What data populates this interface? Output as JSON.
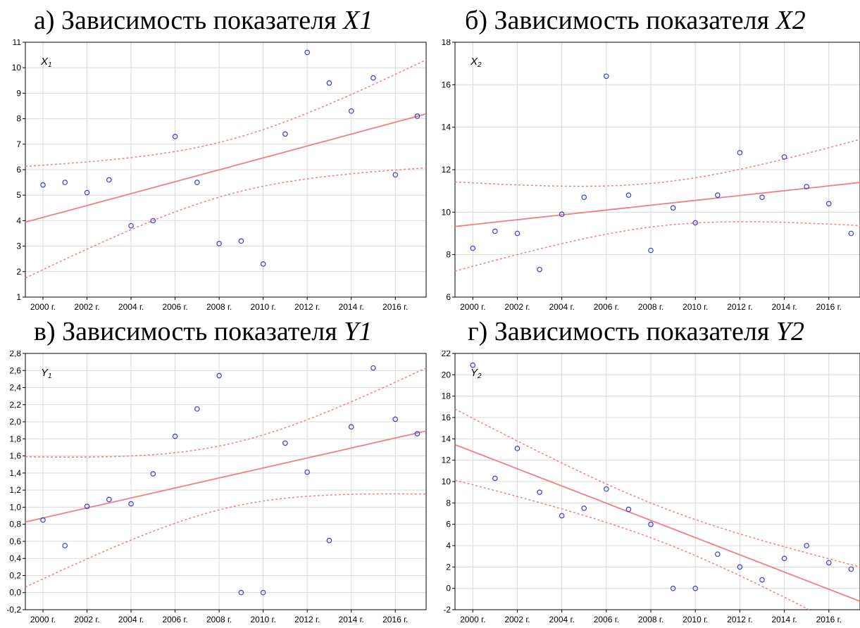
{
  "chart_data": [
    {
      "type": "scatter",
      "caption_prefix": "а) Зависимость показателя ",
      "caption_var": "X1",
      "series_label": "X",
      "series_label_sub": "1",
      "x": [
        2000,
        2001,
        2002,
        2003,
        2004,
        2005,
        2006,
        2007,
        2008,
        2009,
        2010,
        2011,
        2012,
        2013,
        2014,
        2015,
        2016,
        2017
      ],
      "y": [
        5.4,
        5.5,
        5.1,
        5.6,
        3.8,
        4.0,
        7.3,
        5.5,
        3.1,
        3.2,
        2.3,
        7.4,
        10.6,
        9.4,
        8.3,
        9.6,
        5.8,
        8.1
      ],
      "xlim": [
        1999.2,
        2017.4
      ],
      "ylim": [
        1,
        11
      ],
      "ytick_start": 1,
      "ytick_step": 1,
      "ytick_decimals": 0,
      "xtick_labels": [
        "2000 г.",
        "2002 г.",
        "2004 г.",
        "2006 г.",
        "2008 г.",
        "2010 г.",
        "2012 г.",
        "2014 г.",
        "2016 г."
      ],
      "xtick_values": [
        2000,
        2002,
        2004,
        2006,
        2008,
        2010,
        2012,
        2014,
        2016
      ],
      "grid": true,
      "point_color": "#3b3bd6",
      "fit_color": "#f08080"
    },
    {
      "type": "scatter",
      "caption_prefix": "б) Зависимость показателя ",
      "caption_var": "X2",
      "series_label": "X",
      "series_label_sub": "2",
      "x": [
        2000,
        2001,
        2002,
        2003,
        2004,
        2005,
        2006,
        2007,
        2008,
        2009,
        2010,
        2011,
        2012,
        2013,
        2014,
        2015,
        2016,
        2017
      ],
      "y": [
        8.3,
        9.1,
        9.0,
        7.3,
        9.9,
        10.7,
        16.4,
        10.8,
        8.2,
        10.2,
        9.5,
        10.8,
        12.8,
        10.7,
        12.6,
        11.2,
        10.4,
        9.0
      ],
      "xlim": [
        1999.2,
        2017.4
      ],
      "ylim": [
        6,
        18
      ],
      "ytick_start": 6,
      "ytick_step": 2,
      "ytick_decimals": 0,
      "xtick_labels": [
        "2000 г.",
        "2002 г.",
        "2004 г.",
        "2006 г.",
        "2008 г.",
        "2010 г.",
        "2012 г.",
        "2014 г.",
        "2016 г."
      ],
      "xtick_values": [
        2000,
        2002,
        2004,
        2006,
        2008,
        2010,
        2012,
        2014,
        2016
      ],
      "grid": true,
      "point_color": "#3b3bd6",
      "fit_color": "#f08080"
    },
    {
      "type": "scatter",
      "caption_prefix": "в) Зависимость показателя ",
      "caption_var": "Y1",
      "series_label": "Y",
      "series_label_sub": "1",
      "x": [
        2000,
        2001,
        2002,
        2003,
        2004,
        2005,
        2006,
        2007,
        2008,
        2009,
        2010,
        2011,
        2012,
        2013,
        2014,
        2015,
        2016,
        2017
      ],
      "y": [
        0.85,
        0.55,
        1.01,
        1.09,
        1.04,
        1.39,
        1.83,
        2.15,
        2.54,
        0.0,
        0.0,
        1.75,
        1.41,
        0.61,
        1.94,
        2.63,
        2.03,
        1.86
      ],
      "xlim": [
        1999.2,
        2017.4
      ],
      "ylim": [
        -0.2,
        2.8
      ],
      "ytick_start": -0.2,
      "ytick_step": 0.2,
      "ytick_decimals": 1,
      "xtick_labels": [
        "2000 г.",
        "2002 г.",
        "2004 г.",
        "2006 г.",
        "2008 г.",
        "2010 г.",
        "2012 г.",
        "2014 г.",
        "2016 г."
      ],
      "xtick_values": [
        2000,
        2002,
        2004,
        2006,
        2008,
        2010,
        2012,
        2014,
        2016
      ],
      "grid": true,
      "point_color": "#3b3bd6",
      "fit_color": "#f08080"
    },
    {
      "type": "scatter",
      "caption_prefix": "г) Зависимость показателя ",
      "caption_var": "Y2",
      "series_label": "Y",
      "series_label_sub": "2",
      "x": [
        2000,
        2001,
        2002,
        2003,
        2004,
        2005,
        2006,
        2007,
        2008,
        2009,
        2010,
        2011,
        2012,
        2013,
        2014,
        2015,
        2016,
        2017
      ],
      "y": [
        20.9,
        10.3,
        13.1,
        9.0,
        6.8,
        7.5,
        9.3,
        7.4,
        6.0,
        0.0,
        0.0,
        3.2,
        2.0,
        0.8,
        2.8,
        4.0,
        2.4,
        1.8
      ],
      "xlim": [
        1999.2,
        2017.4
      ],
      "ylim": [
        -2,
        22
      ],
      "ytick_start": -2,
      "ytick_step": 2,
      "ytick_decimals": 0,
      "xtick_labels": [
        "2000 г.",
        "2002 г.",
        "2004 г.",
        "2006 г.",
        "2008 г.",
        "2010 г.",
        "2012 г.",
        "2014 г.",
        "2016 г."
      ],
      "xtick_values": [
        2000,
        2002,
        2004,
        2006,
        2008,
        2010,
        2012,
        2014,
        2016
      ],
      "grid": true,
      "point_color": "#3b3bd6",
      "fit_color": "#f08080"
    }
  ]
}
